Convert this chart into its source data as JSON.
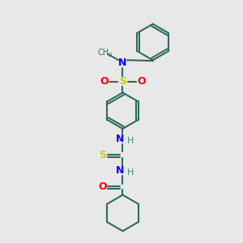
{
  "background_color": "#e8e8e8",
  "bond_color": "#2d6b5e",
  "atom_colors": {
    "N": "#0000ff",
    "O": "#ff0000",
    "S": "#cccc00",
    "H": "#4a8a7a",
    "C": "#2d6b5e"
  }
}
